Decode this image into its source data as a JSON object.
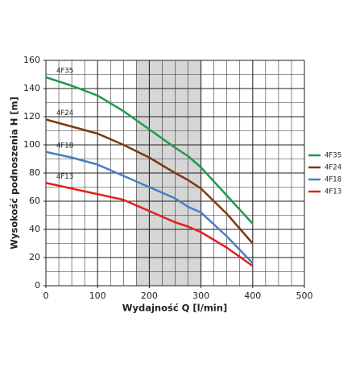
{
  "chart_data": {
    "type": "line",
    "xlabel": "Wydajność Q [l/min]",
    "ylabel": "Wysokość podnoszenia H [m]",
    "x": [
      0,
      50,
      100,
      150,
      200,
      250,
      275,
      300,
      350,
      400
    ],
    "series": [
      {
        "name": "4F35",
        "color": "#1f9a4b",
        "values": [
          148,
          142,
          135,
          124,
          111,
          98,
          92,
          84,
          64,
          44
        ]
      },
      {
        "name": "4F24",
        "color": "#7b3a12",
        "values": [
          118,
          113,
          108,
          100,
          91,
          80,
          75,
          69,
          51,
          30
        ]
      },
      {
        "name": "4F18",
        "color": "#4a7cc6",
        "values": [
          95,
          91,
          86,
          78,
          70,
          62,
          56,
          52,
          35,
          16
        ]
      },
      {
        "name": "4F13",
        "color": "#e3201e",
        "values": [
          73,
          69,
          65,
          61,
          53,
          45,
          42,
          38,
          27,
          14
        ]
      }
    ],
    "xlim": [
      0,
      500
    ],
    "xticks": [
      0,
      100,
      200,
      300,
      400,
      500
    ],
    "ylim": [
      0,
      160
    ],
    "yticks": [
      0,
      20,
      40,
      60,
      80,
      100,
      120,
      140,
      160
    ],
    "minor_grid": {
      "x": 25,
      "y": 10
    },
    "shaded_range": [
      175,
      300
    ],
    "legend": "right"
  }
}
